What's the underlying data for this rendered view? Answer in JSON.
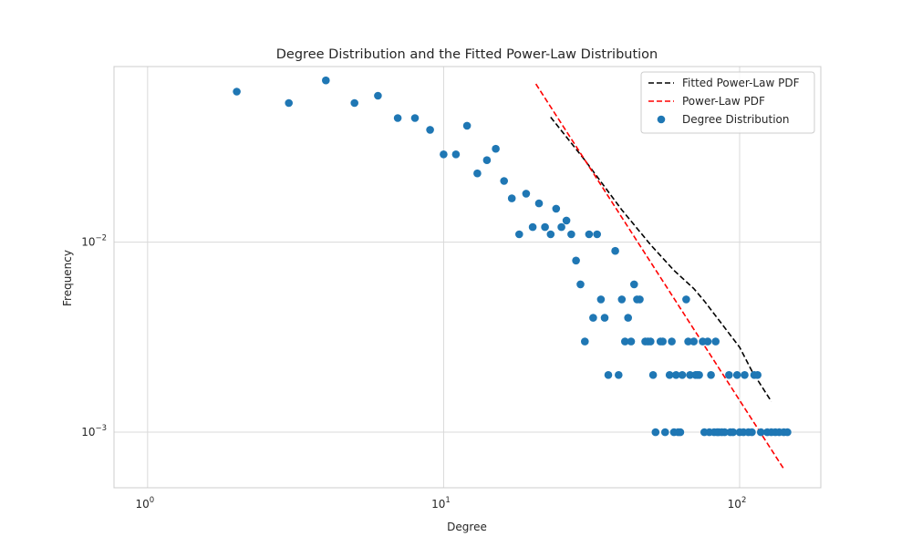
{
  "chart_data": {
    "type": "scatter",
    "title": "Degree Distribution and the Fitted Power-Law Distribution",
    "xlabel": "Degree",
    "ylabel": "Frequency",
    "xscale": "log",
    "yscale": "log",
    "xlim": [
      0.77,
      188
    ],
    "ylim": [
      0.00051,
      0.084
    ],
    "grid": true,
    "legend_position": "top-right",
    "x_ticks": [
      {
        "value": 1,
        "base": "10",
        "exp": "0"
      },
      {
        "value": 10,
        "base": "10",
        "exp": "1"
      },
      {
        "value": 100,
        "base": "10",
        "exp": "2"
      }
    ],
    "y_ticks": [
      {
        "value": 0.001,
        "base": "10",
        "exp": "−3"
      },
      {
        "value": 0.01,
        "base": "10",
        "exp": "−2"
      }
    ],
    "series": [
      {
        "name": "Fitted Power-Law PDF",
        "kind": "line",
        "style": "dashed",
        "color": "#000000",
        "points": [
          [
            23,
            0.0455
          ],
          [
            30,
            0.027
          ],
          [
            40,
            0.0148
          ],
          [
            50,
            0.0097
          ],
          [
            60,
            0.0071
          ],
          [
            70,
            0.0057
          ],
          [
            76,
            0.0049
          ],
          [
            85,
            0.0039
          ],
          [
            100,
            0.0028
          ],
          [
            110,
            0.0021
          ],
          [
            128,
            0.00145
          ]
        ]
      },
      {
        "name": "Power-Law PDF",
        "kind": "line",
        "style": "dashed",
        "color": "#ff0000",
        "points": [
          [
            20.5,
            0.068
          ],
          [
            142,
            0.00063
          ]
        ]
      },
      {
        "name": "Degree Distribution",
        "kind": "scatter",
        "color": "#1f77b4",
        "points": [
          [
            2,
            0.062
          ],
          [
            3,
            0.054
          ],
          [
            4,
            0.071
          ],
          [
            5,
            0.054
          ],
          [
            6,
            0.059
          ],
          [
            7,
            0.045
          ],
          [
            8,
            0.045
          ],
          [
            9,
            0.039
          ],
          [
            10,
            0.029
          ],
          [
            11,
            0.029
          ],
          [
            12,
            0.041
          ],
          [
            13,
            0.023
          ],
          [
            14,
            0.027
          ],
          [
            15,
            0.031
          ],
          [
            16,
            0.021
          ],
          [
            17,
            0.017
          ],
          [
            18,
            0.011
          ],
          [
            19,
            0.018
          ],
          [
            20,
            0.012
          ],
          [
            21,
            0.016
          ],
          [
            22,
            0.012
          ],
          [
            23,
            0.011
          ],
          [
            24,
            0.015
          ],
          [
            25,
            0.012
          ],
          [
            26,
            0.013
          ],
          [
            27,
            0.011
          ],
          [
            28,
            0.008
          ],
          [
            29,
            0.006
          ],
          [
            30,
            0.003
          ],
          [
            31,
            0.011
          ],
          [
            32,
            0.004
          ],
          [
            33,
            0.011
          ],
          [
            34,
            0.005
          ],
          [
            35,
            0.004
          ],
          [
            36,
            0.002
          ],
          [
            38,
            0.009
          ],
          [
            39,
            0.002
          ],
          [
            40,
            0.005
          ],
          [
            41,
            0.003
          ],
          [
            42,
            0.004
          ],
          [
            43,
            0.003
          ],
          [
            44,
            0.006
          ],
          [
            45,
            0.005
          ],
          [
            46,
            0.005
          ],
          [
            48,
            0.003
          ],
          [
            49,
            0.003
          ],
          [
            50,
            0.003
          ],
          [
            51,
            0.002
          ],
          [
            52,
            0.001
          ],
          [
            54,
            0.003
          ],
          [
            55,
            0.003
          ],
          [
            56,
            0.001
          ],
          [
            58,
            0.002
          ],
          [
            59,
            0.003
          ],
          [
            60,
            0.001
          ],
          [
            61,
            0.002
          ],
          [
            62,
            0.001
          ],
          [
            63,
            0.001
          ],
          [
            64,
            0.002
          ],
          [
            66,
            0.005
          ],
          [
            67,
            0.003
          ],
          [
            68,
            0.002
          ],
          [
            70,
            0.003
          ],
          [
            71,
            0.002
          ],
          [
            72,
            0.002
          ],
          [
            73,
            0.002
          ],
          [
            75,
            0.003
          ],
          [
            76,
            0.001
          ],
          [
            78,
            0.003
          ],
          [
            79,
            0.001
          ],
          [
            80,
            0.002
          ],
          [
            82,
            0.001
          ],
          [
            83,
            0.003
          ],
          [
            84,
            0.001
          ],
          [
            85,
            0.001
          ],
          [
            87,
            0.001
          ],
          [
            89,
            0.001
          ],
          [
            92,
            0.002
          ],
          [
            93,
            0.001
          ],
          [
            95,
            0.001
          ],
          [
            98,
            0.002
          ],
          [
            100,
            0.001
          ],
          [
            103,
            0.001
          ],
          [
            104,
            0.002
          ],
          [
            107,
            0.001
          ],
          [
            110,
            0.001
          ],
          [
            112,
            0.002
          ],
          [
            115,
            0.002
          ],
          [
            118,
            0.001
          ],
          [
            124,
            0.001
          ],
          [
            128,
            0.001
          ],
          [
            132,
            0.001
          ],
          [
            136,
            0.001
          ],
          [
            141,
            0.001
          ],
          [
            145,
            0.001
          ]
        ]
      }
    ]
  }
}
